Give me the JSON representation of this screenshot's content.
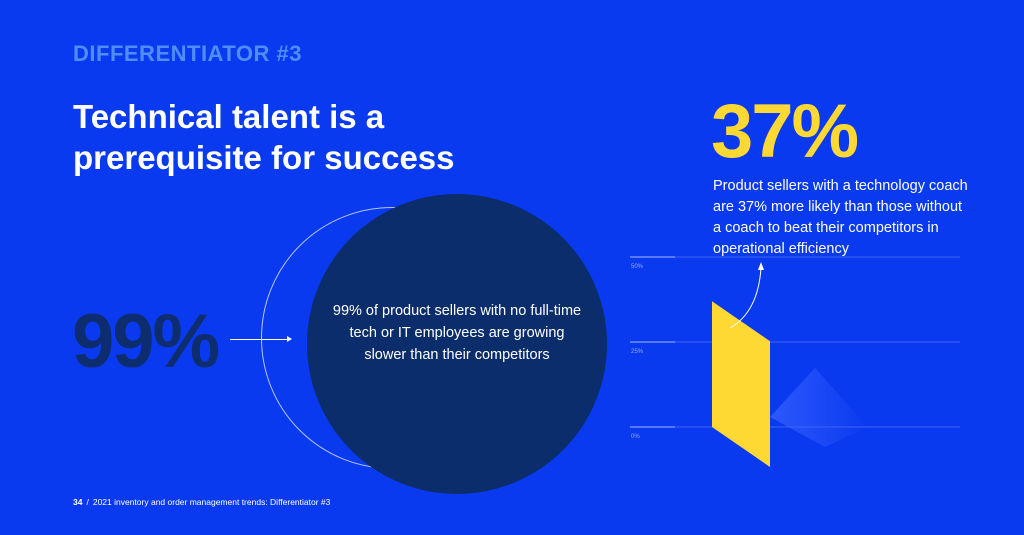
{
  "header": {
    "eyebrow": "DIFFERENTIATOR #3",
    "title": "Technical talent is a prerequisite for success"
  },
  "left_stat": {
    "value": "99%",
    "description": "99% of product sellers with no full-time tech or IT employees are growing slower than their competitors"
  },
  "right_stat": {
    "value": "37%",
    "description": "Product sellers with a technology coach are 37% more likely than those without a coach to beat their competitors in operational efficiency"
  },
  "chart_data": {
    "type": "bar",
    "categories": [
      ""
    ],
    "values": [
      37
    ],
    "ylim": [
      0,
      50
    ],
    "yticks": [
      "50%",
      "25%",
      "0%"
    ],
    "grid": true
  },
  "footer": {
    "page": "34",
    "separator": "/",
    "text": "2021 inventory and order management trends: Differentiator #3"
  },
  "colors": {
    "background": "#0a3af0",
    "accent_yellow": "#ffd933",
    "dark_navy": "#0c2d6b",
    "eyebrow_blue": "#4f8ef7"
  }
}
